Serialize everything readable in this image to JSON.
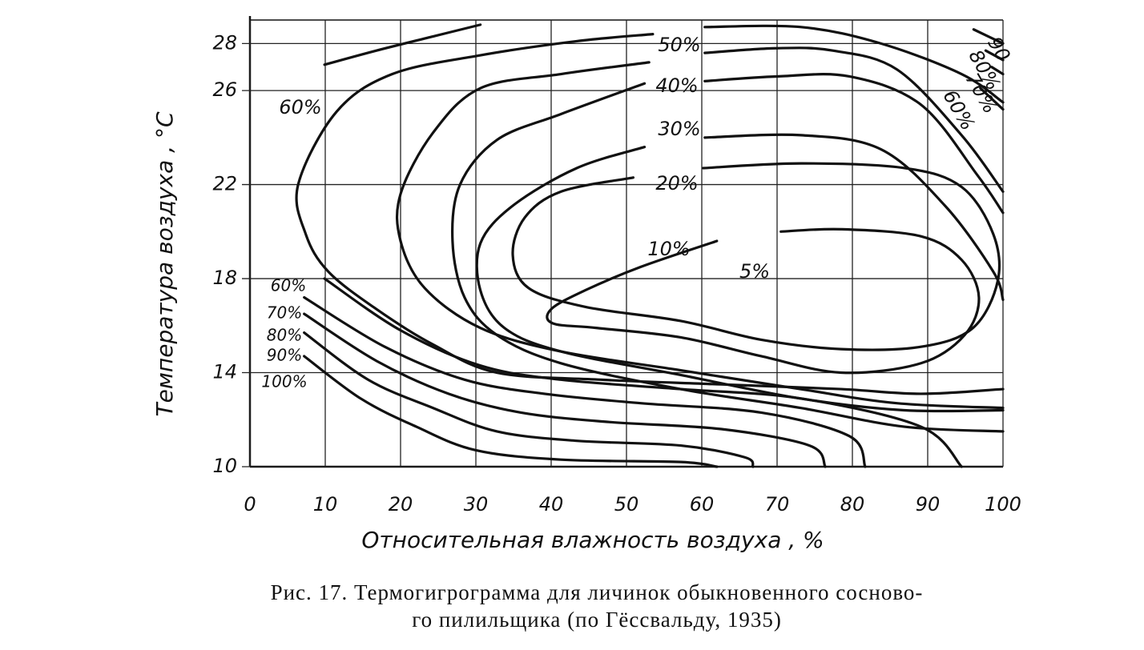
{
  "chart_data": {
    "type": "contour",
    "xlabel": "Относительная влажность воздуха , %",
    "ylabel": "Температура воздуха , °C",
    "caption": [
      "Рис. 17. Термогигрограмма для личинок обыкновенного сосново-",
      "го пилильщика (по Гёссвальду, 1935)"
    ],
    "xlim": [
      0,
      100
    ],
    "xticks": [
      0,
      10,
      20,
      30,
      40,
      50,
      60,
      70,
      80,
      90,
      100
    ],
    "ylim": [
      10,
      29
    ],
    "yticks": [
      10,
      14,
      18,
      22,
      26,
      28
    ],
    "grid": true,
    "color": "#111111",
    "series": [
      {
        "name": "60%",
        "x": [
          9.9,
          16.8,
          24.3,
          30.6
        ],
        "values": [
          27.1,
          27.7,
          28.3,
          28.8
        ]
      },
      {
        "name": "50%",
        "x": [
          53.5,
          43.4,
          30.6,
          18.9,
          11.5,
          6.4,
          7.4,
          10.4,
          16.8,
          24.3,
          32.8,
          46.6,
          62.6,
          78.5,
          89.1,
          100,
          null,
          60.4,
          73.2,
          83.8,
          94.5,
          100
        ],
        "values": [
          28.4,
          28.1,
          27.5,
          26.7,
          25.1,
          22.0,
          19.9,
          18.3,
          16.7,
          15.2,
          14.0,
          13.7,
          13.5,
          13.3,
          13.1,
          13.3,
          null,
          28.7,
          28.7,
          28.0,
          26.7,
          25.5
        ]
      },
      {
        "name": "40%",
        "x": [
          53.0,
          41.3,
          30.6,
          24.3,
          20.0,
          20.0,
          23.2,
          30.6,
          41.3,
          57.2,
          73.1,
          85.9,
          100,
          null,
          60.4,
          69.9,
          77.4,
          85.9,
          94.5,
          100
        ],
        "values": [
          27.2,
          26.7,
          26.1,
          24.2,
          21.6,
          19.6,
          17.6,
          15.9,
          14.9,
          14.1,
          13.3,
          12.7,
          12.5,
          null,
          27.6,
          27.8,
          27.7,
          26.9,
          24.1,
          21.7
        ]
      },
      {
        "name": "30%",
        "x": [
          52.4,
          41.3,
          32.8,
          27.9,
          26.9,
          28.5,
          32.8,
          41.3,
          57.2,
          73.1,
          86.9,
          100,
          null,
          60.4,
          70.0,
          79.6,
          89.1,
          96.6,
          100
        ],
        "values": [
          26.3,
          25.0,
          23.9,
          22.0,
          19.6,
          17.2,
          15.6,
          14.4,
          13.3,
          12.5,
          11.7,
          11.5,
          null,
          26.4,
          26.6,
          26.6,
          25.4,
          22.4,
          20.8
        ]
      },
      {
        "name": "20%",
        "x": [
          52.4,
          43.4,
          34.9,
          30.6,
          30.6,
          33.8,
          41.3,
          57.2,
          73.1,
          86.9,
          100,
          null,
          60.4,
          73.2,
          83.8,
          92.3,
          98.7,
          100
        ],
        "values": [
          23.6,
          22.7,
          21.1,
          19.5,
          17.5,
          15.9,
          14.9,
          13.9,
          12.9,
          12.4,
          12.4,
          null,
          24.0,
          24.1,
          23.5,
          21.1,
          18.3,
          17.1
        ]
      },
      {
        "name": "10%",
        "x": [
          60.2,
          73.2,
          87.0,
          94.5,
          98.7,
          99.3,
          96.0,
          89.1,
          78.5,
          67.9,
          57.2,
          44.5,
          37.0,
          34.9,
          36.5,
          41.3,
          50.9
        ],
        "values": [
          22.7,
          22.9,
          22.7,
          21.9,
          19.9,
          17.9,
          15.9,
          15.1,
          15.0,
          15.4,
          16.2,
          16.8,
          17.6,
          19.0,
          20.6,
          21.7,
          22.3
        ]
      },
      {
        "name": "5%",
        "x": [
          62.0,
          51.9,
          44.5,
          40.0,
          40.2,
          46.1,
          57.2,
          67.9,
          78.5,
          89.1,
          94.9,
          96.8,
          94.5,
          89.1,
          78.5,
          70.5
        ],
        "values": [
          19.6,
          18.5,
          17.5,
          16.7,
          16.1,
          15.9,
          15.5,
          14.7,
          14.0,
          14.4,
          15.6,
          17.2,
          18.8,
          19.8,
          20.1,
          20.0
        ]
      },
      {
        "name": "60%",
        "x": [
          9.9,
          20.0,
          30.6,
          41.3,
          57.2,
          73.2,
          89.1,
          94.5
        ],
        "values": [
          18.0,
          15.8,
          14.3,
          13.7,
          13.3,
          12.9,
          11.7,
          10.0
        ]
      },
      {
        "name": "70%",
        "x": [
          7.2,
          17.9,
          28.5,
          39.1,
          51.9,
          67.9,
          79.6,
          81.7
        ],
        "values": [
          17.2,
          15.1,
          13.7,
          13.1,
          12.7,
          12.3,
          11.3,
          10.0
        ]
      },
      {
        "name": "80%",
        "x": [
          7.2,
          16.8,
          26.4,
          36.0,
          47.7,
          62.6,
          74.3,
          76.4
        ],
        "values": [
          16.5,
          14.5,
          13.1,
          12.3,
          11.9,
          11.6,
          10.9,
          10.0
        ]
      },
      {
        "name": "90%",
        "x": [
          7.2,
          15.7,
          24.3,
          32.8,
          43.4,
          57.2,
          65.7,
          66.8
        ],
        "values": [
          15.7,
          13.7,
          12.5,
          11.5,
          11.1,
          10.9,
          10.4,
          10.0
        ]
      },
      {
        "name": "100%",
        "x": [
          7.2,
          14.7,
          22.1,
          30.0,
          41.3,
          57.2,
          62.0
        ],
        "values": [
          14.7,
          12.9,
          11.7,
          10.7,
          10.3,
          10.2,
          10.0
        ]
      },
      {
        "name": "90",
        "x": [
          96.1,
          100
        ],
        "values": [
          28.6,
          28.0
        ]
      },
      {
        "name": "80%",
        "x": [
          97.7,
          100
        ],
        "values": [
          27.7,
          27.3
        ]
      },
      {
        "name": "70%",
        "x": [
          98.5,
          100
        ],
        "values": [
          27.0,
          26.7
        ]
      },
      {
        "name": "60%",
        "x": [
          97.0,
          100
        ],
        "values": [
          26.1,
          25.2
        ]
      }
    ]
  }
}
